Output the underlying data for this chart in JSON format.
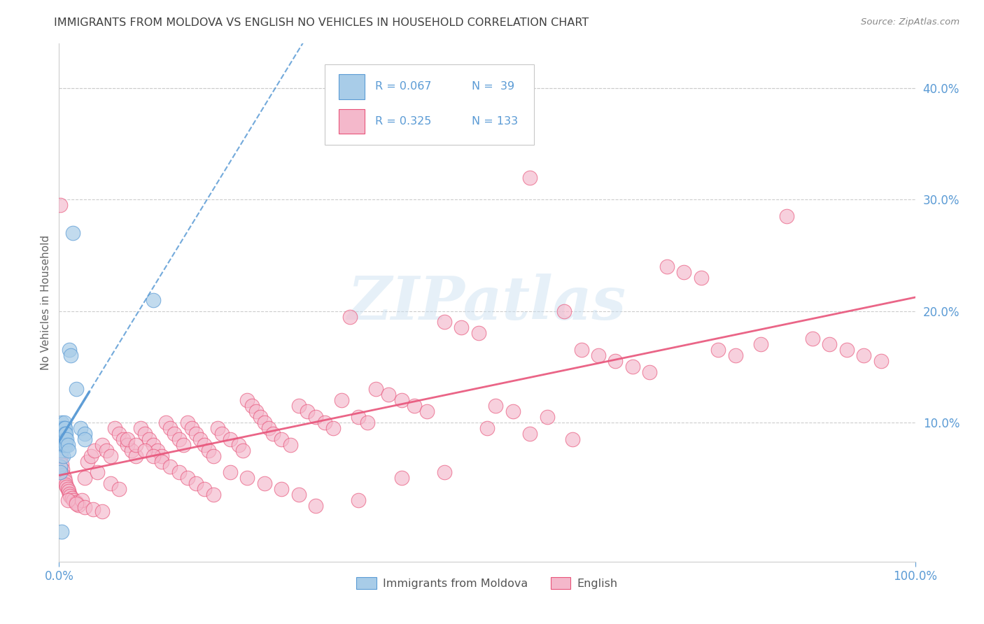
{
  "title": "IMMIGRANTS FROM MOLDOVA VS ENGLISH NO VEHICLES IN HOUSEHOLD CORRELATION CHART",
  "source": "Source: ZipAtlas.com",
  "ylabel": "No Vehicles in Household",
  "xlim": [
    0,
    1.0
  ],
  "ylim": [
    -0.025,
    0.44
  ],
  "ytick_vals": [
    0.0,
    0.1,
    0.2,
    0.3,
    0.4
  ],
  "ytick_labels": [
    "",
    "10.0%",
    "20.0%",
    "30.0%",
    "40.0%"
  ],
  "xtick_vals": [
    0.0,
    1.0
  ],
  "xtick_labels": [
    "0.0%",
    "100.0%"
  ],
  "legend_r1": "R = 0.067",
  "legend_n1": "N =  39",
  "legend_r2": "R = 0.325",
  "legend_n2": "N = 133",
  "blue_face": "#a8cce8",
  "blue_edge": "#5b9bd5",
  "pink_face": "#f4b8cb",
  "pink_edge": "#e8547a",
  "blue_line": "#5b9bd5",
  "pink_line": "#e8547a",
  "legend_text_color": "#5b9bd5",
  "axis_label_color": "#5b9bd5",
  "title_color": "#404040",
  "ylabel_color": "#666666",
  "grid_color": "#cccccc",
  "source_color": "#888888",
  "watermark_color": "#c8dff0",
  "legend_label_color": "#555555",
  "blue_scatter_x": [
    0.001,
    0.001,
    0.002,
    0.002,
    0.002,
    0.003,
    0.003,
    0.003,
    0.003,
    0.003,
    0.004,
    0.004,
    0.004,
    0.004,
    0.005,
    0.005,
    0.005,
    0.005,
    0.006,
    0.006,
    0.006,
    0.006,
    0.007,
    0.007,
    0.007,
    0.008,
    0.008,
    0.009,
    0.01,
    0.011,
    0.012,
    0.014,
    0.016,
    0.02,
    0.025,
    0.03,
    0.03,
    0.11,
    0.003
  ],
  "blue_scatter_y": [
    0.06,
    0.055,
    0.09,
    0.085,
    0.08,
    0.1,
    0.095,
    0.09,
    0.085,
    0.075,
    0.095,
    0.09,
    0.085,
    0.08,
    0.095,
    0.09,
    0.085,
    0.07,
    0.1,
    0.095,
    0.09,
    0.08,
    0.095,
    0.09,
    0.085,
    0.09,
    0.08,
    0.085,
    0.08,
    0.075,
    0.165,
    0.16,
    0.27,
    0.13,
    0.095,
    0.09,
    0.085,
    0.21,
    0.002
  ],
  "pink_scatter_x": [
    0.001,
    0.002,
    0.003,
    0.004,
    0.005,
    0.006,
    0.007,
    0.008,
    0.009,
    0.01,
    0.011,
    0.012,
    0.013,
    0.015,
    0.017,
    0.02,
    0.023,
    0.027,
    0.03,
    0.033,
    0.037,
    0.041,
    0.045,
    0.05,
    0.055,
    0.06,
    0.065,
    0.07,
    0.075,
    0.08,
    0.085,
    0.09,
    0.095,
    0.1,
    0.105,
    0.11,
    0.115,
    0.12,
    0.125,
    0.13,
    0.135,
    0.14,
    0.145,
    0.15,
    0.155,
    0.16,
    0.165,
    0.17,
    0.175,
    0.18,
    0.185,
    0.19,
    0.2,
    0.21,
    0.215,
    0.22,
    0.225,
    0.23,
    0.235,
    0.24,
    0.245,
    0.25,
    0.26,
    0.27,
    0.28,
    0.29,
    0.3,
    0.31,
    0.32,
    0.33,
    0.34,
    0.35,
    0.36,
    0.37,
    0.385,
    0.4,
    0.415,
    0.43,
    0.45,
    0.47,
    0.49,
    0.51,
    0.53,
    0.55,
    0.57,
    0.59,
    0.61,
    0.63,
    0.65,
    0.67,
    0.69,
    0.71,
    0.73,
    0.75,
    0.77,
    0.79,
    0.82,
    0.85,
    0.88,
    0.9,
    0.92,
    0.94,
    0.96,
    0.01,
    0.02,
    0.03,
    0.04,
    0.05,
    0.06,
    0.07,
    0.08,
    0.09,
    0.1,
    0.11,
    0.12,
    0.13,
    0.14,
    0.15,
    0.16,
    0.17,
    0.18,
    0.2,
    0.22,
    0.24,
    0.26,
    0.28,
    0.3,
    0.35,
    0.4,
    0.45,
    0.5,
    0.55,
    0.6
  ],
  "pink_scatter_y": [
    0.295,
    0.07,
    0.062,
    0.058,
    0.053,
    0.05,
    0.047,
    0.044,
    0.042,
    0.04,
    0.038,
    0.036,
    0.034,
    0.032,
    0.03,
    0.028,
    0.026,
    0.03,
    0.05,
    0.065,
    0.07,
    0.075,
    0.055,
    0.08,
    0.075,
    0.07,
    0.095,
    0.09,
    0.085,
    0.08,
    0.075,
    0.07,
    0.095,
    0.09,
    0.085,
    0.08,
    0.075,
    0.07,
    0.1,
    0.095,
    0.09,
    0.085,
    0.08,
    0.1,
    0.095,
    0.09,
    0.085,
    0.08,
    0.075,
    0.07,
    0.095,
    0.09,
    0.085,
    0.08,
    0.075,
    0.12,
    0.115,
    0.11,
    0.105,
    0.1,
    0.095,
    0.09,
    0.085,
    0.08,
    0.115,
    0.11,
    0.105,
    0.1,
    0.095,
    0.12,
    0.195,
    0.105,
    0.1,
    0.13,
    0.125,
    0.12,
    0.115,
    0.11,
    0.19,
    0.185,
    0.18,
    0.115,
    0.11,
    0.32,
    0.105,
    0.2,
    0.165,
    0.16,
    0.155,
    0.15,
    0.145,
    0.24,
    0.235,
    0.23,
    0.165,
    0.16,
    0.17,
    0.285,
    0.175,
    0.17,
    0.165,
    0.16,
    0.155,
    0.03,
    0.027,
    0.024,
    0.022,
    0.02,
    0.045,
    0.04,
    0.085,
    0.08,
    0.075,
    0.07,
    0.065,
    0.06,
    0.055,
    0.05,
    0.045,
    0.04,
    0.035,
    0.055,
    0.05,
    0.045,
    0.04,
    0.035,
    0.025,
    0.03,
    0.05,
    0.055,
    0.095,
    0.09,
    0.085
  ]
}
